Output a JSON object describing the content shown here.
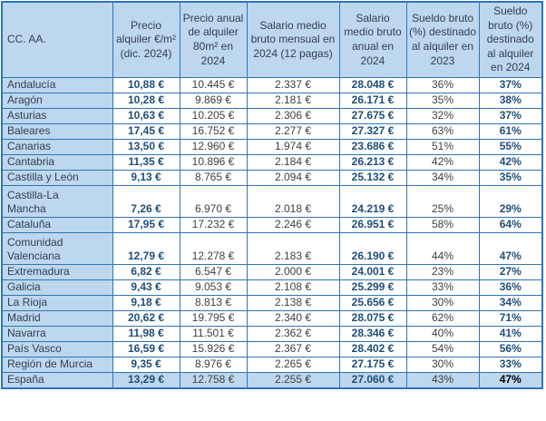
{
  "colors": {
    "border": "#2E75B6",
    "header_and_region_bg": "#BDD7EE",
    "highlight_total_row_bg": "#BDD7EE",
    "header_text": "#333F4F",
    "regular_value_text": "#404040",
    "bold_blue_value_text": "#1F4E79",
    "total_pct_2024_text": "#000000"
  },
  "table": {
    "columns": [
      "CC. AA.",
      "Precio alquiler €/m² (dic. 2024)",
      "Precio anual de alquiler 80m² en 2024",
      "Salario medio bruto mensual en 2024 (12 pagas)",
      "Salario medio bruto anual en 2024",
      "Sueldo bruto (%) destinado al alquiler en 2023",
      "Sueldo bruto (%) destinado al alquiler en 2024"
    ],
    "rows": [
      {
        "region_lines": [
          "Andalucía"
        ],
        "price_m2": "10,88 €",
        "annual_rent": "10.445 €",
        "monthly_salary": "2.337 €",
        "annual_salary": "28.048 €",
        "pct_2023": "36%",
        "pct_2024": "37%",
        "is_total": false
      },
      {
        "region_lines": [
          "Aragón"
        ],
        "price_m2": "10,28 €",
        "annual_rent": "9.869 €",
        "monthly_salary": "2.181 €",
        "annual_salary": "26.171 €",
        "pct_2023": "35%",
        "pct_2024": "38%",
        "is_total": false
      },
      {
        "region_lines": [
          "Asturias"
        ],
        "price_m2": "10,63 €",
        "annual_rent": "10.205 €",
        "monthly_salary": "2.306 €",
        "annual_salary": "27.675 €",
        "pct_2023": "32%",
        "pct_2024": "37%",
        "is_total": false
      },
      {
        "region_lines": [
          "Baleares"
        ],
        "price_m2": "17,45 €",
        "annual_rent": "16.752 €",
        "monthly_salary": "2.277 €",
        "annual_salary": "27.327 €",
        "pct_2023": "63%",
        "pct_2024": "61%",
        "is_total": false
      },
      {
        "region_lines": [
          "Canarias"
        ],
        "price_m2": "13,50 €",
        "annual_rent": "12.960 €",
        "monthly_salary": "1.974 €",
        "annual_salary": "23.686 €",
        "pct_2023": "51%",
        "pct_2024": "55%",
        "is_total": false
      },
      {
        "region_lines": [
          "Cantabria"
        ],
        "price_m2": "11,35 €",
        "annual_rent": "10.896 €",
        "monthly_salary": "2.184 €",
        "annual_salary": "26.213 €",
        "pct_2023": "42%",
        "pct_2024": "42%",
        "is_total": false
      },
      {
        "region_lines": [
          "Castilla y León"
        ],
        "price_m2": "9,13 €",
        "annual_rent": "8.765 €",
        "monthly_salary": "2.094 €",
        "annual_salary": "25.132 €",
        "pct_2023": "34%",
        "pct_2024": "35%",
        "is_total": false
      },
      {
        "region_lines": [
          "Castilla-La",
          "Mancha"
        ],
        "price_m2": "7,26 €",
        "annual_rent": "6.970 €",
        "monthly_salary": "2.018 €",
        "annual_salary": "24.219 €",
        "pct_2023": "25%",
        "pct_2024": "29%",
        "is_total": false
      },
      {
        "region_lines": [
          "Cataluña"
        ],
        "price_m2": "17,95 €",
        "annual_rent": "17.232 €",
        "monthly_salary": "2.246 €",
        "annual_salary": "26.951 €",
        "pct_2023": "58%",
        "pct_2024": "64%",
        "is_total": false
      },
      {
        "region_lines": [
          "Comunidad",
          "Valenciana"
        ],
        "price_m2": "12,79 €",
        "annual_rent": "12.278 €",
        "monthly_salary": "2.183 €",
        "annual_salary": "26.190 €",
        "pct_2023": "44%",
        "pct_2024": "47%",
        "is_total": false
      },
      {
        "region_lines": [
          "Extremadura"
        ],
        "price_m2": "6,82 €",
        "annual_rent": "6.547 €",
        "monthly_salary": "2.000 €",
        "annual_salary": "24.001 €",
        "pct_2023": "23%",
        "pct_2024": "27%",
        "is_total": false
      },
      {
        "region_lines": [
          "Galicia"
        ],
        "price_m2": "9,43 €",
        "annual_rent": "9.053 €",
        "monthly_salary": "2.108 €",
        "annual_salary": "25.299 €",
        "pct_2023": "33%",
        "pct_2024": "36%",
        "is_total": false
      },
      {
        "region_lines": [
          "La Rioja"
        ],
        "price_m2": "9,18 €",
        "annual_rent": "8.813 €",
        "monthly_salary": "2.138 €",
        "annual_salary": "25.656 €",
        "pct_2023": "30%",
        "pct_2024": "34%",
        "is_total": false
      },
      {
        "region_lines": [
          "Madrid"
        ],
        "price_m2": "20,62 €",
        "annual_rent": "19.795 €",
        "monthly_salary": "2.340 €",
        "annual_salary": "28.075 €",
        "pct_2023": "62%",
        "pct_2024": "71%",
        "is_total": false
      },
      {
        "region_lines": [
          "Navarra"
        ],
        "price_m2": "11,98 €",
        "annual_rent": "11.501 €",
        "monthly_salary": "2.362 €",
        "annual_salary": "28.346 €",
        "pct_2023": "40%",
        "pct_2024": "41%",
        "is_total": false
      },
      {
        "region_lines": [
          "País Vasco"
        ],
        "price_m2": "16,59 €",
        "annual_rent": "15.926 €",
        "monthly_salary": "2.367 €",
        "annual_salary": "28.402 €",
        "pct_2023": "54%",
        "pct_2024": "56%",
        "is_total": false
      },
      {
        "region_lines": [
          "Región de Murcia"
        ],
        "price_m2": "9,35 €",
        "annual_rent": "8.976 €",
        "monthly_salary": "2.265 €",
        "annual_salary": "27.175 €",
        "pct_2023": "30%",
        "pct_2024": "33%",
        "is_total": false
      },
      {
        "region_lines": [
          "España"
        ],
        "price_m2": "13,29 €",
        "annual_rent": "12.758 €",
        "monthly_salary": "2.255 €",
        "annual_salary": "27.060 €",
        "pct_2023": "43%",
        "pct_2024": "47%",
        "is_total": true
      }
    ]
  },
  "chart_data": {
    "type": "table",
    "title": "",
    "columns": [
      "CC. AA.",
      "Precio alquiler €/m² (dic. 2024)",
      "Precio anual de alquiler 80m² en 2024",
      "Salario medio bruto mensual en 2024 (12 pagas)",
      "Salario medio bruto anual en 2024",
      "Sueldo bruto (%) destinado al alquiler en 2023",
      "Sueldo bruto (%) destinado al alquiler en 2024"
    ],
    "rows": [
      [
        "Andalucía",
        10.88,
        10445,
        2337,
        28048,
        36,
        37
      ],
      [
        "Aragón",
        10.28,
        9869,
        2181,
        26171,
        35,
        38
      ],
      [
        "Asturias",
        10.63,
        10205,
        2306,
        27675,
        32,
        37
      ],
      [
        "Baleares",
        17.45,
        16752,
        2277,
        27327,
        63,
        61
      ],
      [
        "Canarias",
        13.5,
        12960,
        1974,
        23686,
        51,
        55
      ],
      [
        "Cantabria",
        11.35,
        10896,
        2184,
        26213,
        42,
        42
      ],
      [
        "Castilla y León",
        9.13,
        8765,
        2094,
        25132,
        34,
        35
      ],
      [
        "Castilla-La Mancha",
        7.26,
        6970,
        2018,
        24219,
        25,
        29
      ],
      [
        "Cataluña",
        17.95,
        17232,
        2246,
        26951,
        58,
        64
      ],
      [
        "Comunidad Valenciana",
        12.79,
        12278,
        2183,
        26190,
        44,
        47
      ],
      [
        "Extremadura",
        6.82,
        6547,
        2000,
        24001,
        23,
        27
      ],
      [
        "Galicia",
        9.43,
        9053,
        2108,
        25299,
        33,
        36
      ],
      [
        "La Rioja",
        9.18,
        8813,
        2138,
        25656,
        30,
        34
      ],
      [
        "Madrid",
        20.62,
        19795,
        2340,
        28075,
        62,
        71
      ],
      [
        "Navarra",
        11.98,
        11501,
        2362,
        28346,
        40,
        41
      ],
      [
        "País Vasco",
        16.59,
        15926,
        2367,
        28402,
        54,
        56
      ],
      [
        "Región de Murcia",
        9.35,
        8976,
        2265,
        27175,
        30,
        33
      ],
      [
        "España",
        13.29,
        12758,
        2255,
        27060,
        43,
        47
      ]
    ],
    "units": {
      "price_m2": "€/m²",
      "annual_rent": "€",
      "monthly_salary": "€",
      "annual_salary": "€",
      "pct_2023": "%",
      "pct_2024": "%"
    }
  }
}
